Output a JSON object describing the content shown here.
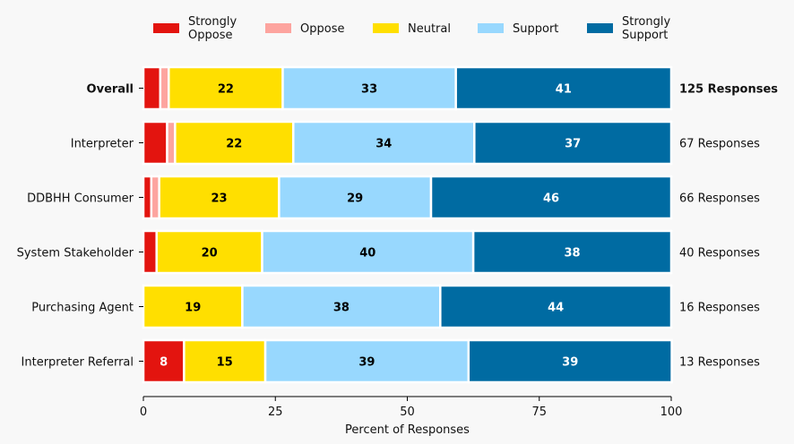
{
  "chart_data": {
    "type": "bar",
    "orientation": "horizontal",
    "stacked": true,
    "title": "",
    "xlabel": "Percent of Responses",
    "ylabel": "",
    "xlim": [
      0,
      100
    ],
    "xticks": [
      0,
      25,
      50,
      75,
      100
    ],
    "grid": false,
    "legend_position": "top",
    "value_labels_shown_min": 5,
    "categories": [
      "Overall",
      "Interpreter",
      "DDBHH Consumer",
      "System Stakeholder",
      "Purchasing Agent",
      "Interpreter Referral"
    ],
    "category_bold": [
      true,
      false,
      false,
      false,
      false,
      false
    ],
    "responses": [
      125,
      67,
      66,
      40,
      16,
      13
    ],
    "response_labels": [
      "125 Responses",
      "67 Responses",
      "66 Responses",
      "40 Responses",
      "16 Responses",
      "13 Responses"
    ],
    "series": [
      {
        "name": "Strongly Oppose",
        "legend_label": [
          "Strongly",
          "Oppose"
        ],
        "color": "#e3140f",
        "label_color": "#ffffff",
        "values": [
          3.2,
          4.5,
          1.5,
          2.5,
          0.0,
          7.7
        ]
      },
      {
        "name": "Oppose",
        "legend_label": [
          "Oppose"
        ],
        "color": "#fda49f",
        "label_color": "#000000",
        "values": [
          1.6,
          1.5,
          1.5,
          0.0,
          0.0,
          0.0
        ]
      },
      {
        "name": "Neutral",
        "legend_label": [
          "Neutral"
        ],
        "color": "#ffdf00",
        "label_color": "#000000",
        "values": [
          21.6,
          22.4,
          22.7,
          20.0,
          18.75,
          15.4
        ]
      },
      {
        "name": "Support",
        "legend_label": [
          "Support"
        ],
        "color": "#98d8fe",
        "label_color": "#000000",
        "values": [
          32.8,
          34.3,
          28.8,
          40.0,
          37.5,
          38.5
        ]
      },
      {
        "name": "Strongly Support",
        "legend_label": [
          "Strongly",
          "Support"
        ],
        "color": "#006ba2",
        "label_color": "#ffffff",
        "values": [
          40.8,
          37.3,
          45.5,
          37.5,
          43.75,
          38.5
        ]
      }
    ]
  }
}
